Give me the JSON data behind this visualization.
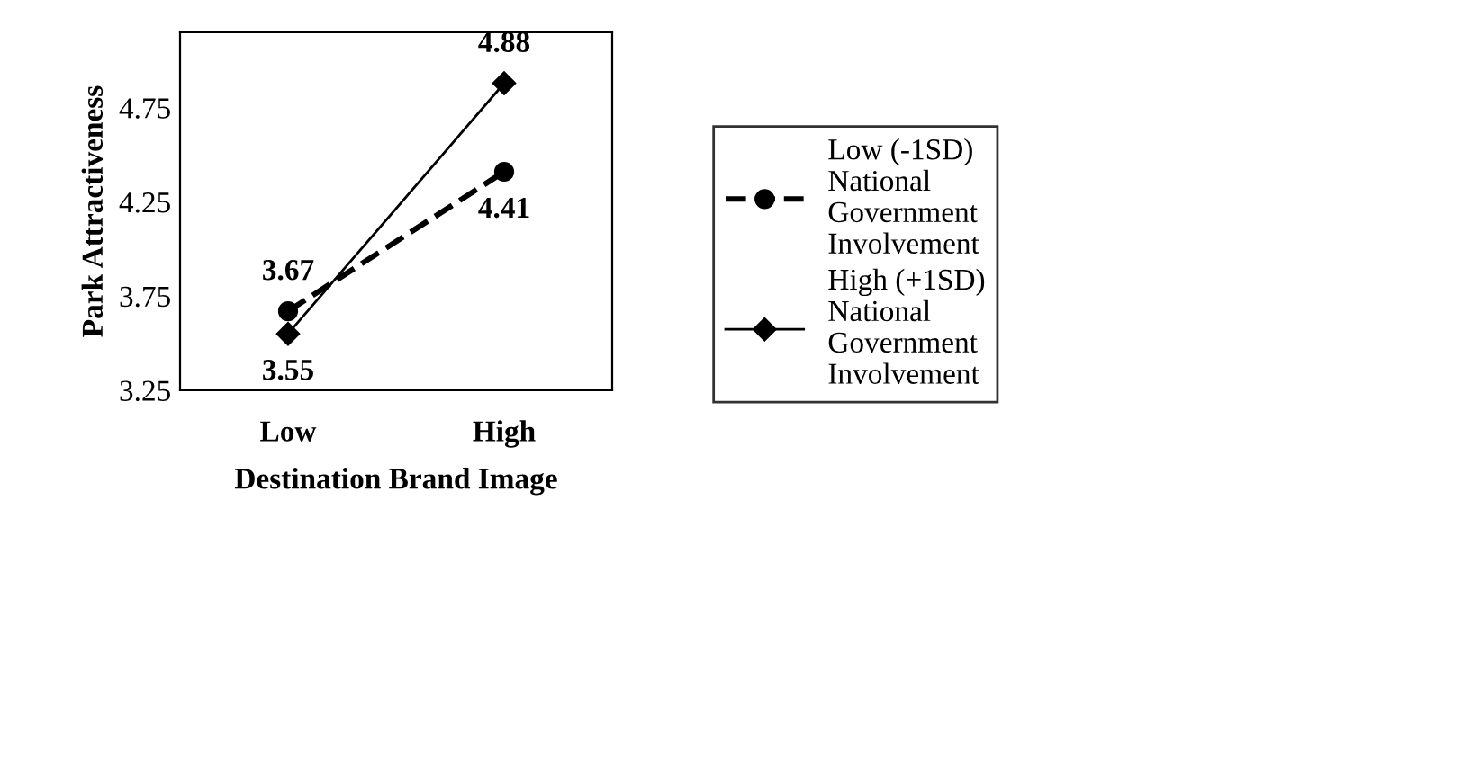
{
  "chart_data": {
    "type": "line",
    "xlabel": "Destination Brand Image",
    "ylabel": "Park Attractiveness",
    "categories": [
      "Low",
      "High"
    ],
    "series": [
      {
        "name": "Low (-1SD)\nNational\nGovernment\nInvolvement",
        "color": "#000000",
        "values": [
          3.67,
          4.41
        ],
        "marker": "circle",
        "line_style": "dashed"
      },
      {
        "name": "High (+1SD)\nNational\nGovernment\nInvolvement",
        "color": "#000000",
        "values": [
          3.55,
          4.88
        ],
        "marker": "diamond",
        "line_style": "solid"
      }
    ],
    "ylim": [
      3.25,
      5.15
    ],
    "yticks": [
      3.25,
      3.75,
      4.25,
      4.75
    ],
    "grid": false,
    "legend": "right",
    "data_labels": true
  }
}
